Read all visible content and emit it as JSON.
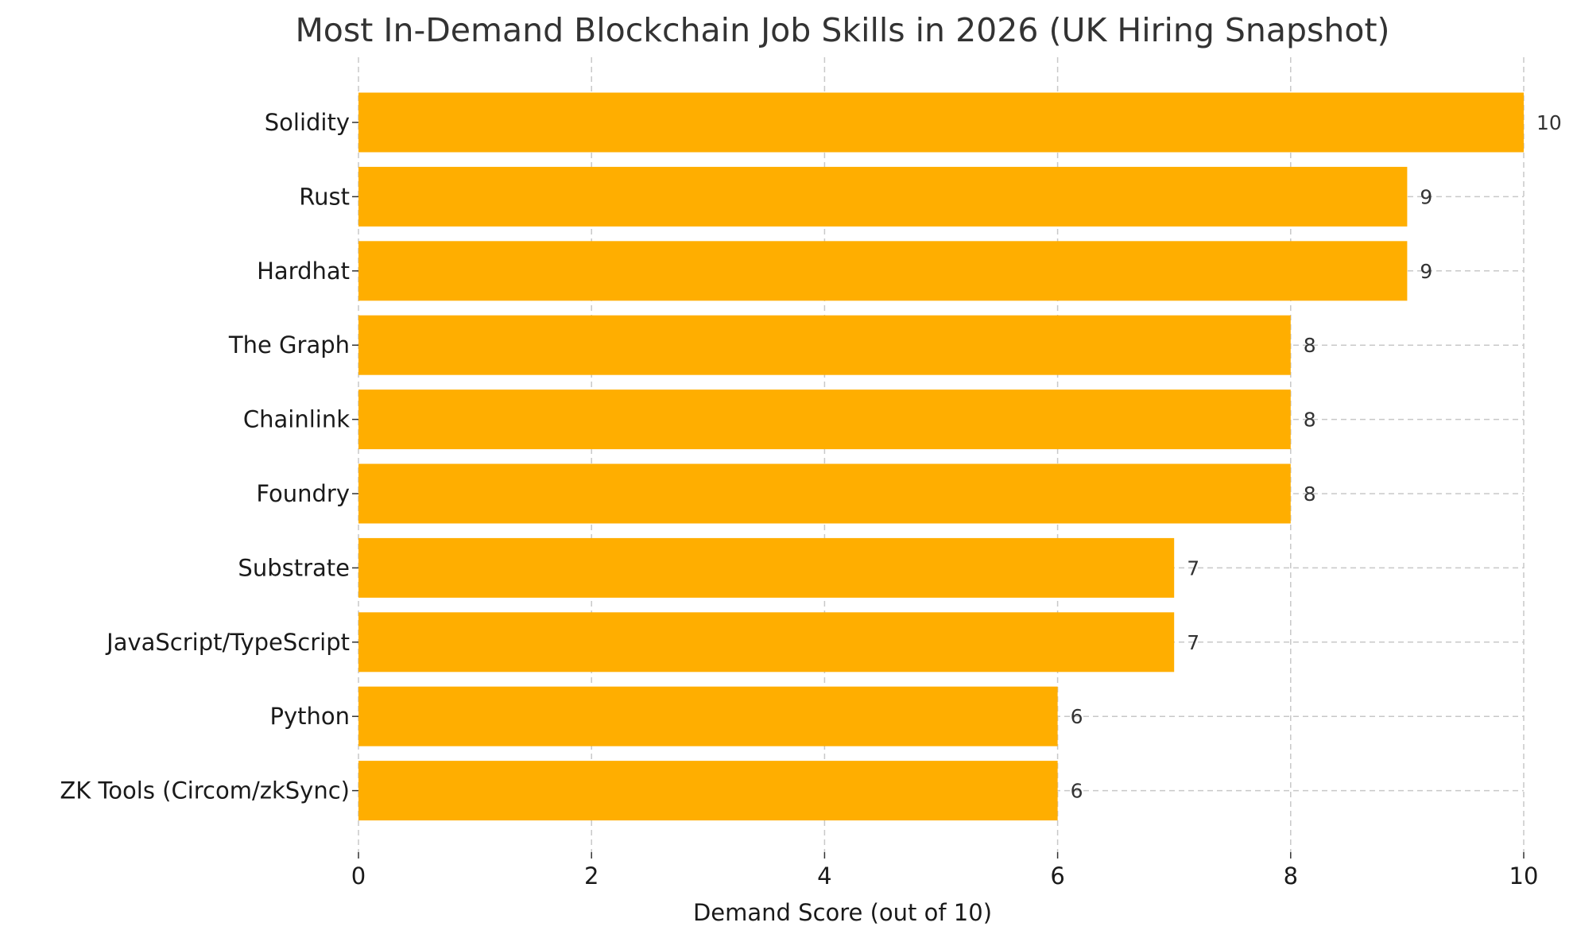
{
  "chart_data": {
    "type": "bar",
    "orientation": "horizontal",
    "title": "Most In-Demand Blockchain Job Skills in 2026 (UK Hiring Snapshot)",
    "xlabel": "Demand Score (out of 10)",
    "ylabel": "",
    "xlim": [
      0,
      10
    ],
    "xticks": [
      0,
      2,
      4,
      6,
      8,
      10
    ],
    "grid": true,
    "bar_color": "#FFAE00",
    "categories": [
      "Solidity",
      "Rust",
      "Hardhat",
      "The Graph",
      "Chainlink",
      "Foundry",
      "Substrate",
      "JavaScript/TypeScript",
      "Python",
      "ZK Tools (Circom/zkSync)"
    ],
    "values": [
      10,
      9,
      9,
      8,
      8,
      8,
      7,
      7,
      6,
      6
    ],
    "data_labels": [
      "10",
      "9",
      "9",
      "8",
      "8",
      "8",
      "7",
      "7",
      "6",
      "6"
    ]
  }
}
